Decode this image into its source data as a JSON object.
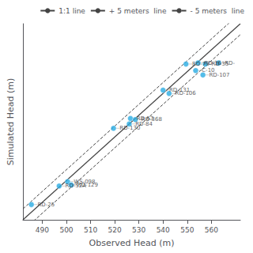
{
  "chart_data": {
    "type": "scatter",
    "xlabel": "Observed Head (m)",
    "ylabel": "Simulated Head (m)",
    "xlim": [
      482,
      572
    ],
    "ylim": [
      482,
      572
    ],
    "xticks": [
      490,
      500,
      510,
      520,
      530,
      540,
      550,
      560
    ],
    "tick_labels": "x",
    "grid": false,
    "legend": "upper right",
    "series": [
      {
        "type": "scatter",
        "color": "#29ABE2",
        "marker": "circle",
        "x": [
          485.5,
          497.0,
          500.5,
          502.0,
          519.5,
          526.5,
          528.5,
          526.0,
          540.0,
          549.5,
          542.5,
          554.5,
          557.5,
          553.5,
          556.5,
          563.0
        ],
        "values": [
          489.0,
          497.5,
          499.5,
          498.0,
          524.0,
          528.5,
          528.0,
          526.0,
          541.5,
          553.5,
          540.0,
          554.0,
          553.5,
          550.5,
          548.5,
          554.0
        ],
        "labels": [
          "RD-25",
          "RD-52A",
          "WS-098",
          "RD-129",
          "RD-130",
          "RD-53",
          "RD-368",
          "RD-84",
          "RD-131",
          "RD-73",
          "RD-106",
          "RD-36",
          "RD-35",
          "C-10",
          "RD-107",
          "RD-"
        ]
      },
      {
        "type": "line",
        "name": "1:1 line",
        "color": "#444444",
        "line_style": "solid",
        "offset": 0
      },
      {
        "type": "line",
        "name": "+ 5 meters  line",
        "color": "#444444",
        "line_style": "dashed",
        "offset": 5
      },
      {
        "type": "line",
        "name": "- 5 meters  line",
        "color": "#444444",
        "line_style": "dashed",
        "offset": -5
      }
    ]
  }
}
